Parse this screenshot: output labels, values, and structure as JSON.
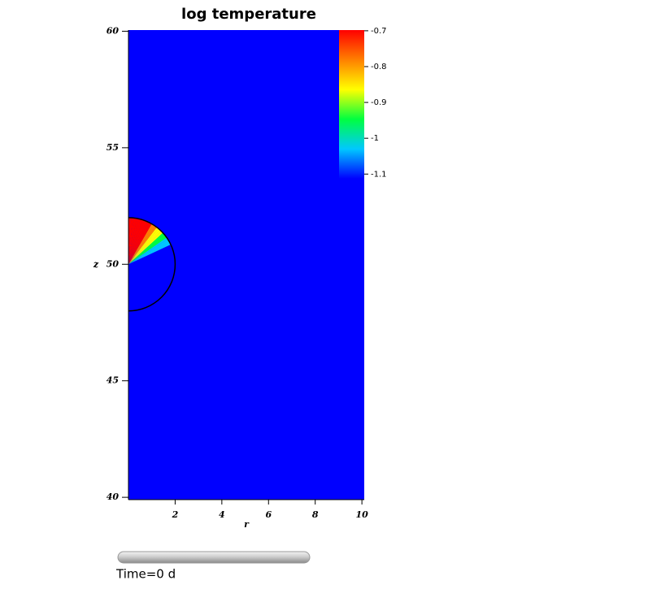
{
  "chart_data": {
    "type": "field",
    "title": "log temperature",
    "x_label": "r",
    "y_label": "z",
    "xlim": [
      0,
      10.1
    ],
    "ylim": [
      39.9,
      60.05
    ],
    "xticks": [
      2,
      4,
      6,
      8,
      10
    ],
    "yticks": [
      40,
      45,
      50,
      55,
      60
    ],
    "background_color": "#0000ff",
    "colorbar": {
      "lim": [
        -1.113,
        -0.698
      ],
      "ticks": [
        -0.7,
        -0.8,
        -0.9,
        -1,
        -1.1
      ],
      "colors": [
        "#0000ff",
        "#00c8ff",
        "#00ff40",
        "#ffff00",
        "#ff8000",
        "#ff0000"
      ]
    },
    "time_label": "Time=0 d"
  }
}
